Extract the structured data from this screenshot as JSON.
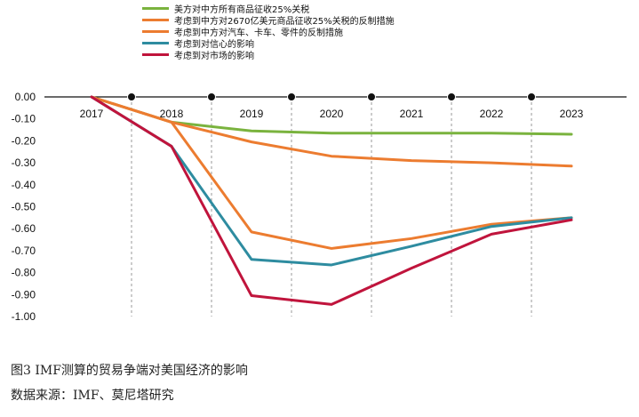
{
  "caption": {
    "figure_title": "图3  IMF测算的贸易争端对美国经济的影响",
    "source": "数据来源：IMF、莫尼塔研究"
  },
  "chart_data": {
    "type": "line",
    "categories": [
      "2017",
      "2018",
      "2019",
      "2020",
      "2021",
      "2022",
      "2023"
    ],
    "y_ticks": [
      "0.00",
      "-0.10",
      "-0.20",
      "-0.30",
      "-0.40",
      "-0.50",
      "-0.60",
      "-0.70",
      "-0.80",
      "-0.90",
      "-1.00"
    ],
    "ylim": [
      -1.0,
      0.0
    ],
    "grid": "vertical dashed",
    "legend_position": "top",
    "series": [
      {
        "name": "美方对中方所有商品征收25%关税",
        "color": "#7ab33e",
        "values": [
          0.0,
          -0.115,
          -0.155,
          -0.165,
          -0.165,
          -0.165,
          -0.17
        ]
      },
      {
        "name": "考虑到中方对2670亿美元商品征收25%关税的反制措施",
        "color": "#ec7c30",
        "values": [
          0.0,
          -0.115,
          -0.205,
          -0.27,
          -0.29,
          -0.3,
          -0.315
        ]
      },
      {
        "name": "考虑到中方对汽车、卡车、零件的反制措施",
        "color": "#ec7c30",
        "values": [
          0.0,
          -0.115,
          -0.615,
          -0.69,
          -0.645,
          -0.58,
          -0.55
        ]
      },
      {
        "name": "考虑到对信心的影响",
        "color": "#2e8ca0",
        "values": [
          0.0,
          -0.225,
          -0.74,
          -0.765,
          -0.68,
          -0.59,
          -0.55
        ]
      },
      {
        "name": "考虑到对市场的影响",
        "color": "#c0143c",
        "values": [
          0.0,
          -0.225,
          -0.905,
          -0.945,
          -0.78,
          -0.625,
          -0.56
        ]
      }
    ]
  }
}
